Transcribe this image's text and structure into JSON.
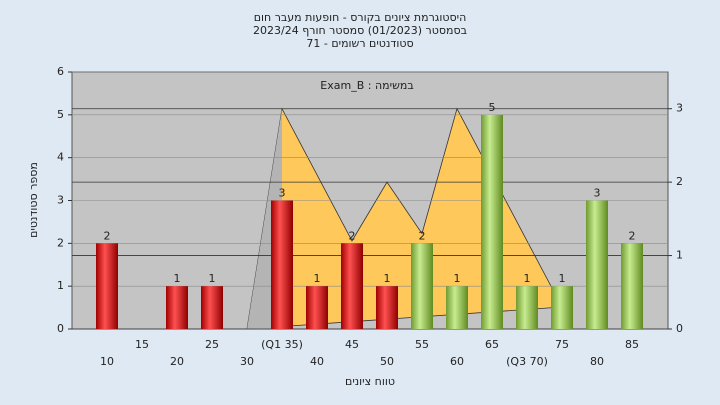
{
  "chart_data": {
    "type": "bar",
    "title": [
      "היסטוגרמת ציונים בקורס - חופעות מעבר חום",
      "בסמסטר  (01/2023)  סמסטר חורף 2023/24",
      "סטודנטים רשומים - 71"
    ],
    "annotation": "Exam_B : במשימה",
    "x_label": "טווח ציונים",
    "y_label": "מספר סטודנטים",
    "categories": [
      "10",
      "15",
      "20",
      "25",
      "30",
      "(Q1 35)",
      "40",
      "45",
      "50",
      "55",
      "60",
      "65",
      "(Q3 70)",
      "75",
      "80",
      "85"
    ],
    "x": [
      10,
      15,
      20,
      25,
      30,
      35,
      40,
      45,
      50,
      55,
      60,
      65,
      70,
      75,
      80,
      85
    ],
    "values": [
      2,
      0,
      1,
      1,
      0,
      3,
      1,
      2,
      1,
      2,
      1,
      5,
      1,
      1,
      3,
      2
    ],
    "colors": [
      "red",
      "red",
      "red",
      "red",
      "red",
      "red",
      "red",
      "red",
      "red",
      "green",
      "green",
      "green",
      "green",
      "green",
      "green",
      "green"
    ],
    "areas": [
      {
        "color": "#ffc85a",
        "x": [
          30,
          35,
          45,
          50,
          55,
          60,
          75
        ],
        "values": [
          0,
          3.0,
          1.2,
          2.0,
          1.3,
          3.0,
          0.3
        ],
        "axis": "y2"
      },
      {
        "color": "#b4b4b4",
        "x": [
          30,
          35,
          35
        ],
        "values": [
          0,
          3.0,
          0
        ],
        "axis": "y2"
      }
    ],
    "ylim": [
      0,
      6
    ],
    "yticks": [
      0,
      1,
      2,
      3,
      4,
      5,
      6
    ],
    "y2lim": [
      0,
      3.5
    ],
    "y2ticks": [
      0,
      1,
      2,
      3
    ],
    "grid": true
  }
}
